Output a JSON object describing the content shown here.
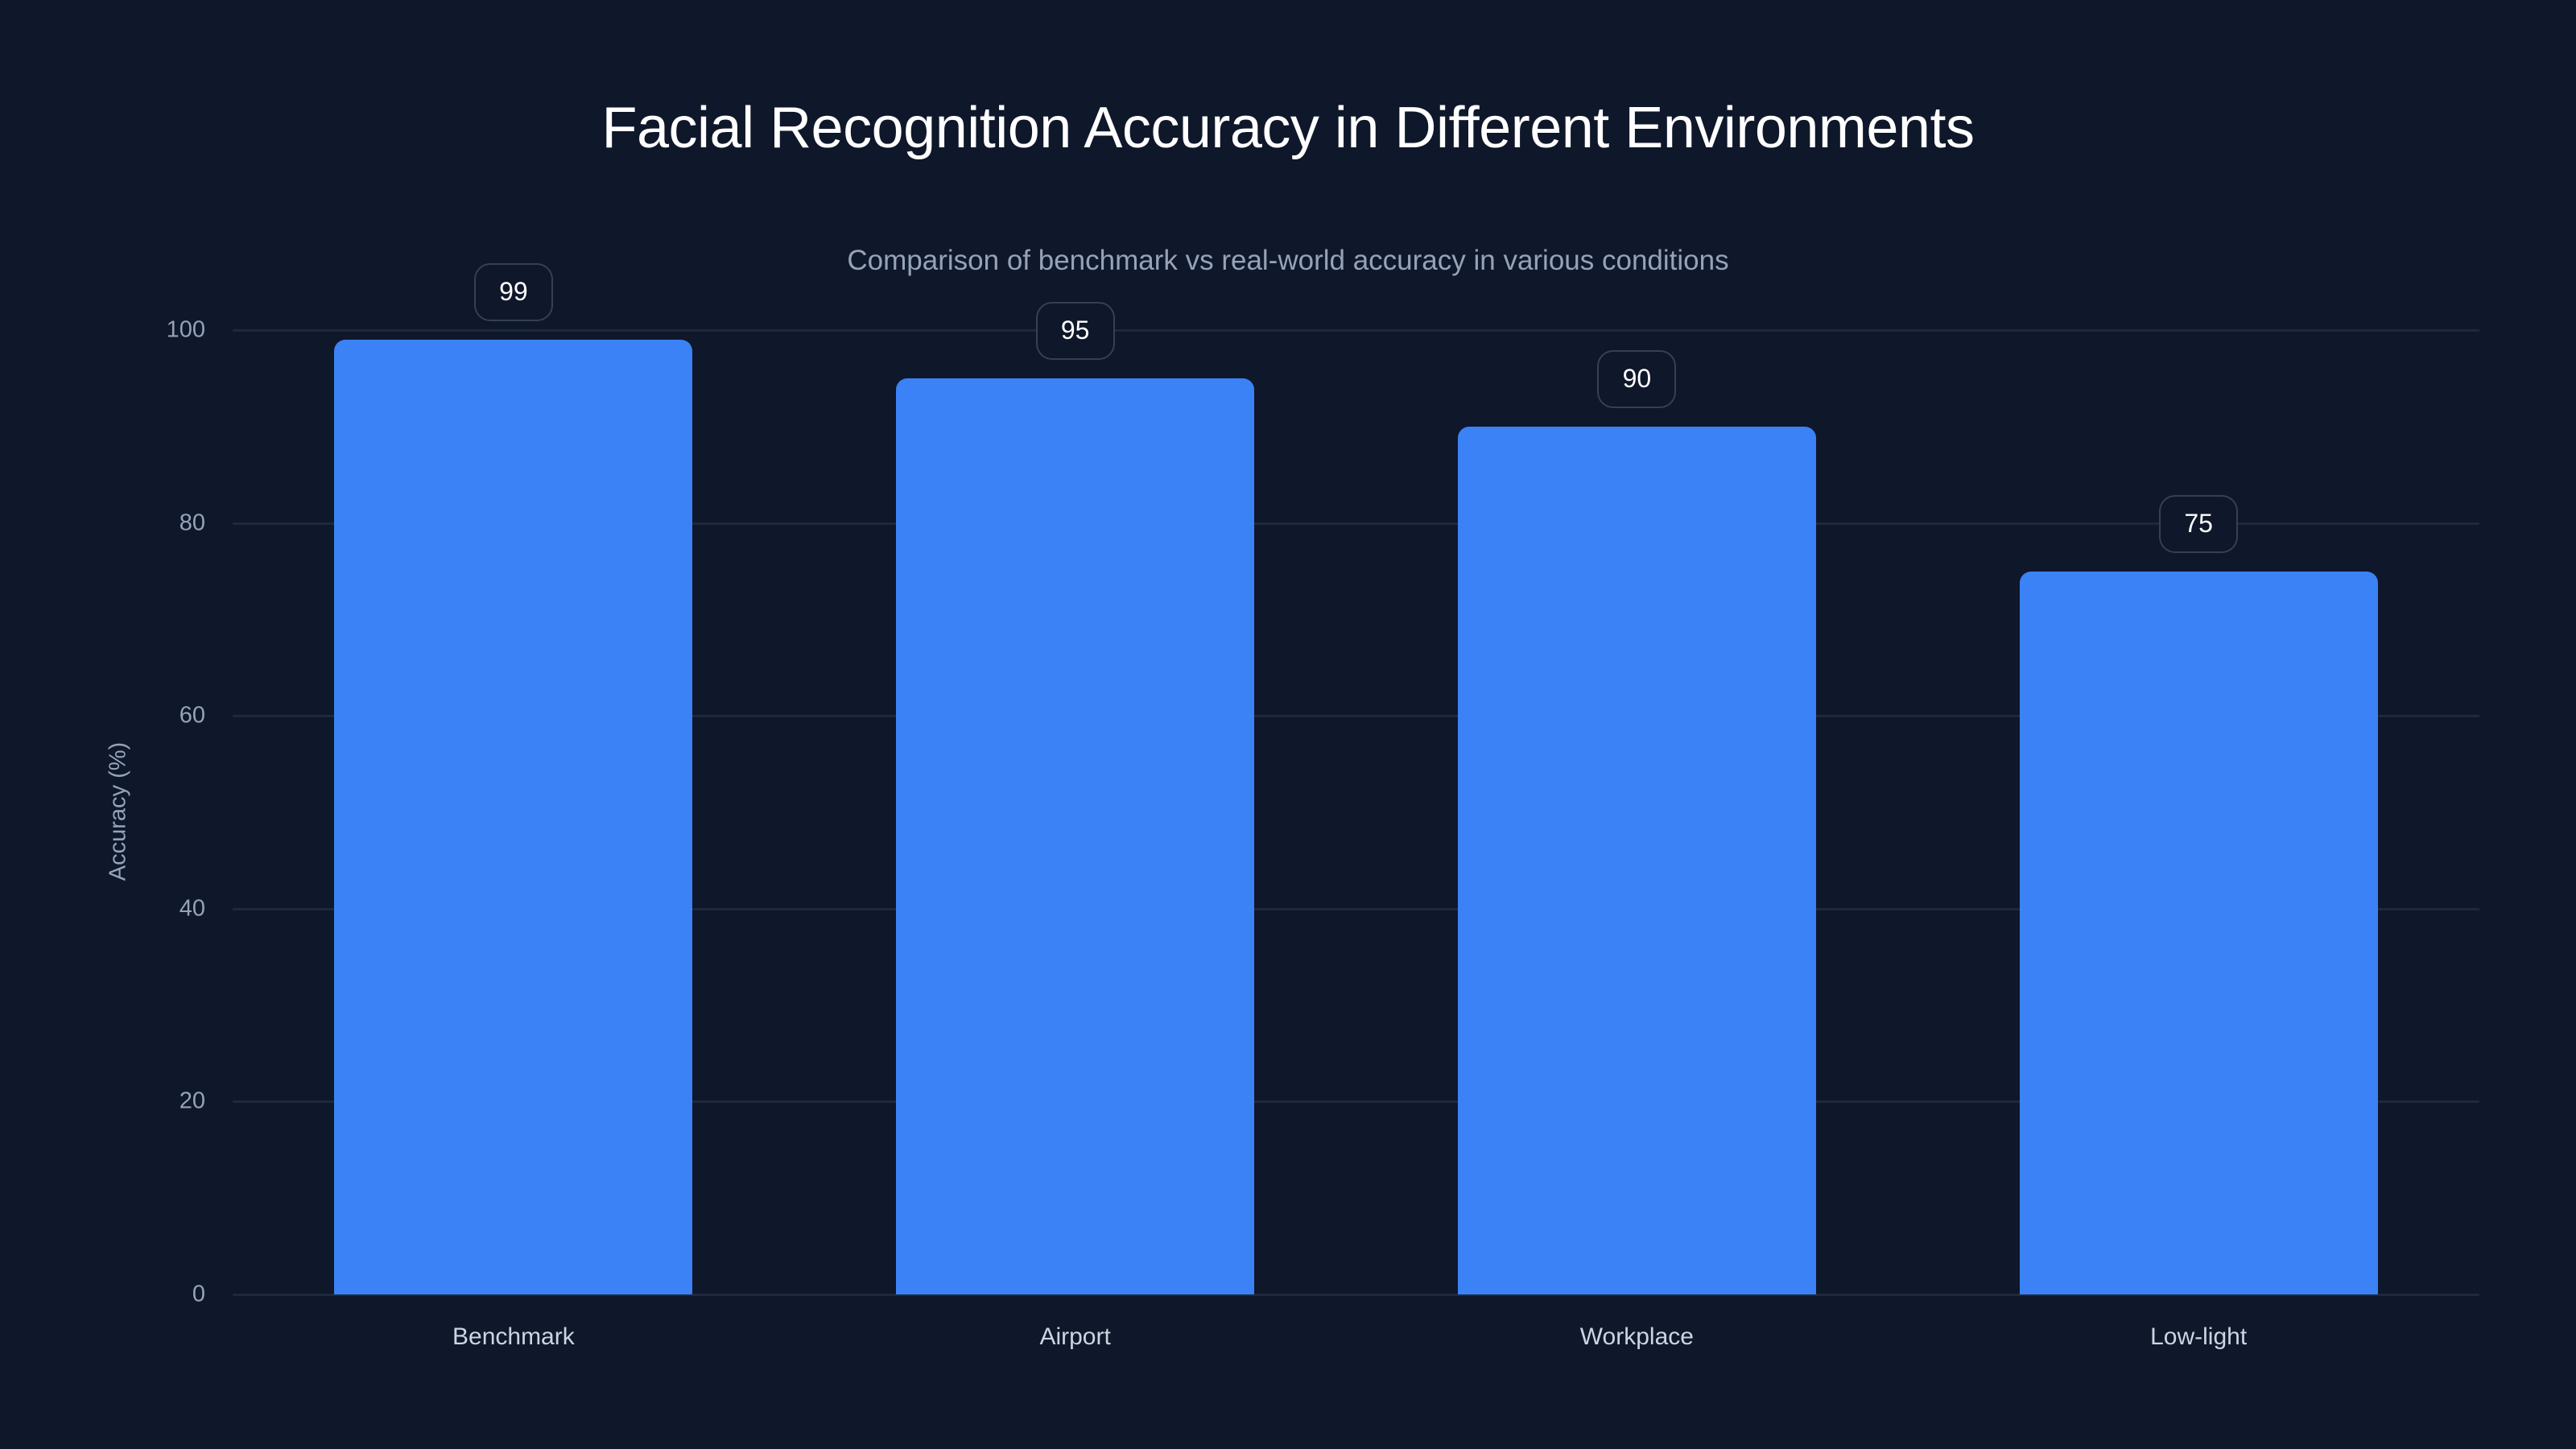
{
  "chart_data": {
    "type": "bar",
    "title": "Facial Recognition Accuracy in Different Environments",
    "subtitle": "Comparison of benchmark vs real-world accuracy in various conditions",
    "xlabel": "",
    "ylabel": "Accuracy (%)",
    "categories": [
      "Benchmark",
      "Airport",
      "Workplace",
      "Low-light"
    ],
    "values": [
      99,
      95,
      90,
      75
    ],
    "ylim": [
      0,
      100
    ],
    "yticks": [
      0,
      20,
      40,
      60,
      80,
      100
    ],
    "grid": true,
    "legend": null,
    "data_labels": [
      "99",
      "95",
      "90",
      "75"
    ],
    "colors": {
      "bar": "#3b82f6",
      "background": "#0f172a",
      "grid": "#1e293b"
    }
  }
}
